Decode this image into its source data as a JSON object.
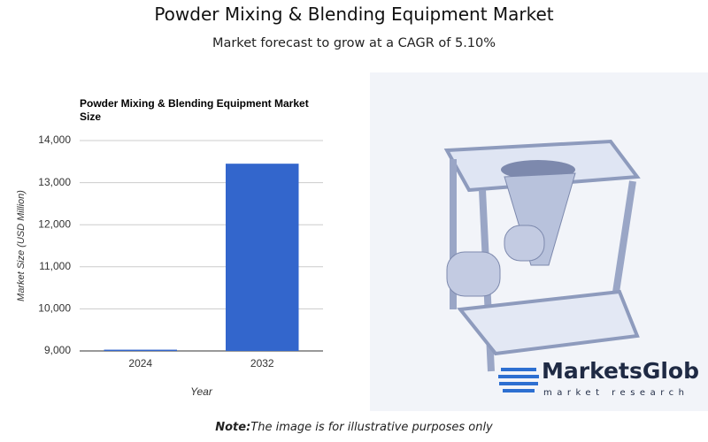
{
  "header": {
    "title": "Powder Mixing & Blending Equipment Market",
    "subtitle": "Market forecast to grow at a CAGR of 5.10%"
  },
  "chart_data": {
    "type": "bar",
    "title": "Powder Mixing & Blending Equipment Market Size",
    "x_label": "Year",
    "y_label": "Market Size (USD Million)",
    "categories": [
      "2024",
      "2032"
    ],
    "values": [
      9030,
      13450
    ],
    "color": "#3366cc",
    "ylim": [
      9000,
      14000
    ],
    "yticks": [
      {
        "value": 9000,
        "label": "9,000"
      },
      {
        "value": 10000,
        "label": "10,000"
      },
      {
        "value": 11000,
        "label": "11,000"
      },
      {
        "value": 12000,
        "label": "12,000"
      },
      {
        "value": 13000,
        "label": "13,000"
      },
      {
        "value": 14000,
        "label": "14,000"
      }
    ],
    "grid": true
  },
  "image": {
    "brand": "MarketsGlob",
    "tagline": "market research"
  },
  "note": {
    "label": "Note:",
    "text": "The image is for illustrative purposes only"
  }
}
